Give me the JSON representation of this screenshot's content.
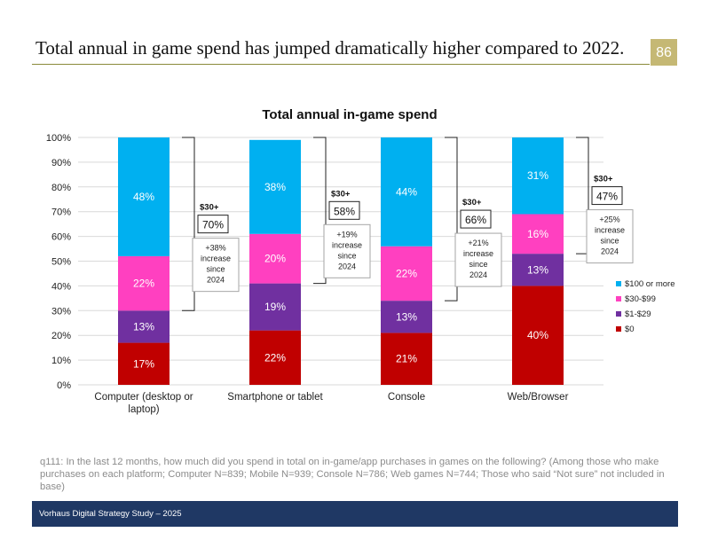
{
  "page": {
    "title": "Total annual in game spend has jumped dramatically higher compared to 2022.",
    "page_number": "86",
    "footnote": "q111: In the last 12 months, how much did you spend in total on in-game/app purchases in games on the following? (Among those who make purchases on each platform; Computer N=839; Mobile N=939; Console N=786; Web games N=744; Those who said “Not sure” not included in base)",
    "footer": "Vorhaus Digital Strategy Study – 2025"
  },
  "colors": {
    "s100": "#00b0f0",
    "s30": "#ff40c0",
    "s1": "#7030a0",
    "s0": "#c00000",
    "accent": "#c5b874",
    "footer": "#1f3864"
  },
  "chart_data": {
    "type": "bar",
    "stacked": true,
    "title": "Total annual in-game spend",
    "categories": [
      "Computer (desktop or laptop)",
      "Smartphone or tablet",
      "Console",
      "Web/Browser"
    ],
    "series": [
      {
        "name": "$0",
        "values": [
          17,
          22,
          21,
          40
        ],
        "color": "#c00000"
      },
      {
        "name": "$1-$29",
        "values": [
          13,
          19,
          13,
          13
        ],
        "color": "#7030a0"
      },
      {
        "name": "$30-$99",
        "values": [
          22,
          20,
          22,
          16
        ],
        "color": "#ff40c0"
      },
      {
        "name": "$100 or more",
        "values": [
          48,
          38,
          44,
          31
        ],
        "color": "#00b0f0"
      }
    ],
    "ylim": [
      0,
      100
    ],
    "yticks": [
      "0%",
      "10%",
      "20%",
      "30%",
      "40%",
      "50%",
      "60%",
      "70%",
      "80%",
      "90%",
      "100%"
    ],
    "legend_position": "right",
    "annotations": [
      {
        "label": "$30+",
        "value": "70%",
        "note": "+38% increase since 2024"
      },
      {
        "label": "$30+",
        "value": "58%",
        "note": "+19% increase since 2024"
      },
      {
        "label": "$30+",
        "value": "66%",
        "note": "+21% increase since 2024"
      },
      {
        "label": "$30+",
        "value": "47%",
        "note": "+25% increase since 2024"
      }
    ]
  }
}
